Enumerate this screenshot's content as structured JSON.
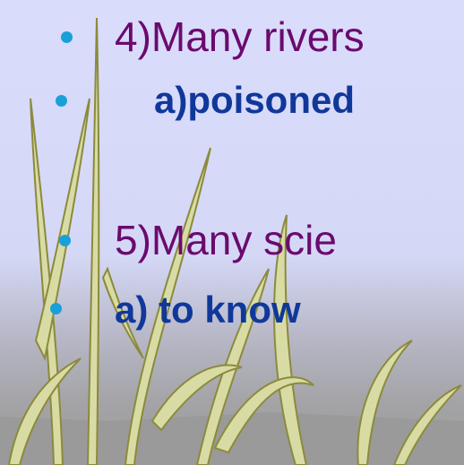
{
  "slide": {
    "items": [
      {
        "text": "4)Many rivers",
        "level": 1
      },
      {
        "text": "a)poisoned",
        "level": 2
      },
      {
        "text": "5)Many scie",
        "level": 1
      },
      {
        "text": "a) to know",
        "level": 2
      }
    ]
  }
}
